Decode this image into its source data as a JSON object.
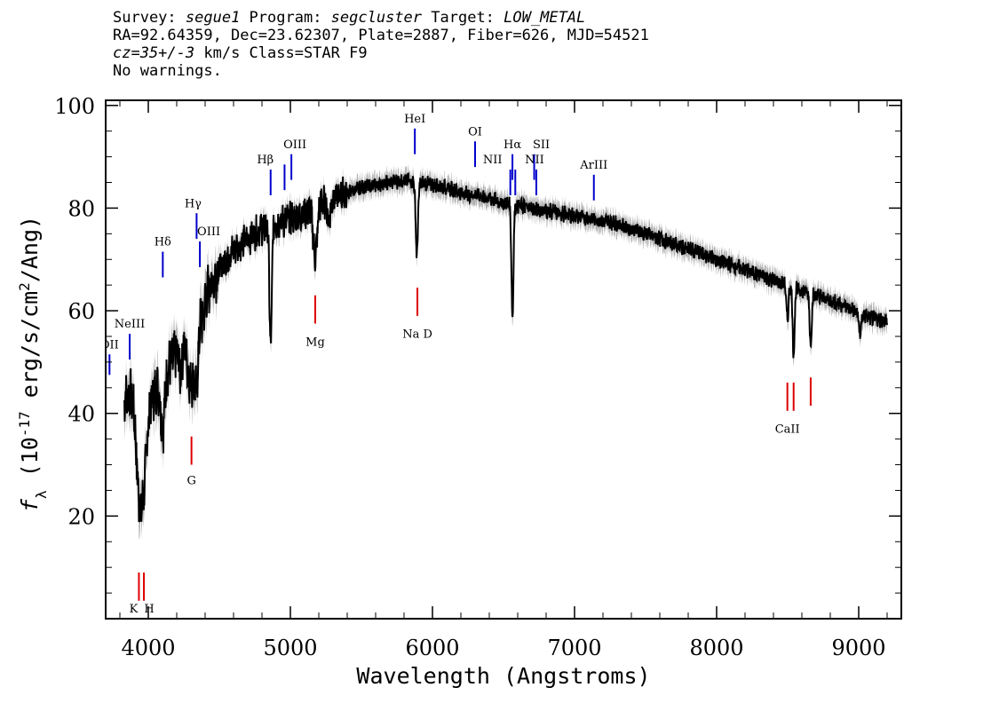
{
  "header": {
    "line1": {
      "survey_label": "Survey: ",
      "survey": "segue1",
      "program_label": " Program: ",
      "program": "segcluster",
      "target_label": " Target: ",
      "target": "LOW_METAL"
    },
    "line2": "RA=92.64359, Dec=23.62307, Plate=2887, Fiber=626, MJD=54521",
    "line3": {
      "cz": "cz=35+/-3",
      "rest": " km/s Class=STAR F9"
    },
    "line4": "No warnings."
  },
  "chart_data": {
    "type": "line",
    "xlabel": "Wavelength (Angstroms)",
    "ylabel_parts": [
      "f",
      "λ",
      " (10",
      "-17",
      " erg/s/cm",
      "2",
      "/Ang)"
    ],
    "xlim": [
      3700,
      9300
    ],
    "ylim": [
      0,
      101
    ],
    "xticks": [
      4000,
      5000,
      6000,
      7000,
      8000,
      9000
    ],
    "yticks": [
      20,
      40,
      60,
      80,
      100
    ],
    "grid": false,
    "colors": {
      "flux": "#000000",
      "error_band": "#b0b0b0",
      "emission_marker": "#0000cc",
      "absorption_marker": "#dd0000"
    },
    "continuum": [
      [
        3830,
        43
      ],
      [
        3900,
        44
      ],
      [
        4000,
        42
      ],
      [
        4100,
        47
      ],
      [
        4200,
        52
      ],
      [
        4300,
        56
      ],
      [
        4400,
        63
      ],
      [
        4500,
        68
      ],
      [
        4600,
        72
      ],
      [
        4700,
        74
      ],
      [
        4800,
        76
      ],
      [
        4900,
        77
      ],
      [
        5000,
        78
      ],
      [
        5100,
        79
      ],
      [
        5200,
        81
      ],
      [
        5300,
        82
      ],
      [
        5400,
        83
      ],
      [
        5500,
        84
      ],
      [
        5600,
        84.5
      ],
      [
        5700,
        85
      ],
      [
        5800,
        85.5
      ],
      [
        5900,
        85
      ],
      [
        6000,
        84.5
      ],
      [
        6100,
        84
      ],
      [
        6200,
        83
      ],
      [
        6300,
        82.5
      ],
      [
        6400,
        82
      ],
      [
        6500,
        81
      ],
      [
        6600,
        80.5
      ],
      [
        6700,
        80
      ],
      [
        6800,
        79.5
      ],
      [
        6900,
        79
      ],
      [
        7000,
        78.5
      ],
      [
        7100,
        78
      ],
      [
        7200,
        77.5
      ],
      [
        7300,
        77
      ],
      [
        7400,
        76
      ],
      [
        7500,
        75
      ],
      [
        7600,
        74
      ],
      [
        7700,
        73
      ],
      [
        7800,
        72
      ],
      [
        7900,
        71
      ],
      [
        8000,
        70
      ],
      [
        8100,
        69
      ],
      [
        8200,
        68
      ],
      [
        8300,
        67
      ],
      [
        8400,
        66
      ],
      [
        8500,
        65
      ],
      [
        8600,
        64
      ],
      [
        8700,
        63
      ],
      [
        8800,
        62
      ],
      [
        8900,
        61
      ],
      [
        9000,
        59.5
      ],
      [
        9100,
        58.5
      ],
      [
        9200,
        58
      ]
    ],
    "absorption_features": [
      [
        3934,
        17,
        20
      ],
      [
        3969,
        14,
        20
      ],
      [
        4102,
        10,
        14
      ],
      [
        4227,
        5,
        10
      ],
      [
        4300,
        10,
        22
      ],
      [
        4340,
        12,
        14
      ],
      [
        4384,
        4,
        8
      ],
      [
        4861,
        24,
        8
      ],
      [
        5175,
        10,
        14
      ],
      [
        5270,
        4,
        12
      ],
      [
        5890,
        14,
        8
      ],
      [
        6563,
        22,
        7
      ],
      [
        8498,
        7,
        7
      ],
      [
        8542,
        13,
        7
      ],
      [
        8662,
        10,
        7
      ],
      [
        9010,
        4,
        8
      ]
    ],
    "emission_lines": [
      {
        "label": "OII",
        "wavelength": 3727,
        "y": [
          47.5,
          51.5
        ],
        "label_y": 52.7,
        "label_dx": 0
      },
      {
        "label": "NeIII",
        "wavelength": 3869,
        "y": [
          50.5,
          55.5
        ],
        "label_y": 56.7,
        "label_dx": 0
      },
      {
        "label": "Hδ",
        "wavelength": 4102,
        "y": [
          66.5,
          71.5
        ],
        "label_y": 72.7,
        "label_dx": 0
      },
      {
        "label": "Hγ",
        "wavelength": 4340,
        "y": [
          74,
          79
        ],
        "label_y": 80.2,
        "label_dx": -4
      },
      {
        "label": "OIII",
        "wavelength": 4363,
        "y": [
          68.5,
          73.5
        ],
        "label_y": 74.7,
        "label_dx": 10
      },
      {
        "label": "Hβ",
        "wavelength": 4861,
        "y": [
          82.5,
          87.5
        ],
        "label_y": 88.7,
        "label_dx": -6
      },
      {
        "label": "OIII",
        "wavelength": 4959,
        "y": [
          83.5,
          88.5
        ],
        "label_y": 0,
        "label_dx": 0
      },
      {
        "label": "OIII",
        "wavelength": 5007,
        "y": [
          85.5,
          90.5
        ],
        "label_y": 91.7,
        "label_dx": 4
      },
      {
        "label": "HeI",
        "wavelength": 5876,
        "y": [
          90.5,
          95.5
        ],
        "label_y": 96.7,
        "label_dx": 0
      },
      {
        "label": "OI",
        "wavelength": 6300,
        "y": [
          88,
          93
        ],
        "label_y": 94.2,
        "label_dx": 0
      },
      {
        "label": "NII",
        "wavelength": 6548,
        "y": [
          82.5,
          87.5
        ],
        "label_y": 88.7,
        "label_dx": -20
      },
      {
        "label": "Hα",
        "wavelength": 6563,
        "y": [
          85.5,
          90.5
        ],
        "label_y": 91.7,
        "label_dx": 0
      },
      {
        "label": "NII",
        "wavelength": 6583,
        "y": [
          82.5,
          87.5
        ],
        "label_y": 0,
        "label_dx": 0
      },
      {
        "label": "SII",
        "wavelength": 6716,
        "y": [
          85.5,
          90.5
        ],
        "label_y": 91.7,
        "label_dx": 8
      },
      {
        "label": "NII",
        "wavelength": 6731,
        "y": [
          82.5,
          87.5
        ],
        "label_y": 88.7,
        "label_dx": -2
      },
      {
        "label": "ArIII",
        "wavelength": 7136,
        "y": [
          81.5,
          86.5
        ],
        "label_y": 87.7,
        "label_dx": 0
      }
    ],
    "absorption_lines": [
      {
        "label": "K",
        "wavelength": 3934,
        "y": [
          3.5,
          9
        ],
        "label_y": 1.2,
        "label_dx": -6
      },
      {
        "label": "H",
        "wavelength": 3969,
        "y": [
          3.5,
          9
        ],
        "label_y": 1.2,
        "label_dx": 6
      },
      {
        "label": "",
        "wavelength": 4304,
        "y": [
          30,
          35.5
        ],
        "label_y": 0,
        "label_dx": 0
      },
      {
        "label": "G",
        "wavelength": 4304,
        "y": [
          0,
          0
        ],
        "label_y": 26.2,
        "label_dx": 0
      },
      {
        "label": "Mg",
        "wavelength": 5175,
        "y": [
          57.5,
          63
        ],
        "label_y": 53.2,
        "label_dx": 0
      },
      {
        "label": "Na D",
        "wavelength": 5894,
        "y": [
          59,
          64.5
        ],
        "label_y": 54.7,
        "label_dx": 0
      },
      {
        "label": "CaII",
        "wavelength": 8498,
        "y": [
          40.5,
          46
        ],
        "label_y": 36.2,
        "label_dx": 0
      },
      {
        "label": "",
        "wavelength": 8542,
        "y": [
          40.5,
          46
        ],
        "label_y": 0,
        "label_dx": 0
      },
      {
        "label": "",
        "wavelength": 8662,
        "y": [
          41.5,
          47
        ],
        "label_y": 0,
        "label_dx": 0
      }
    ]
  }
}
